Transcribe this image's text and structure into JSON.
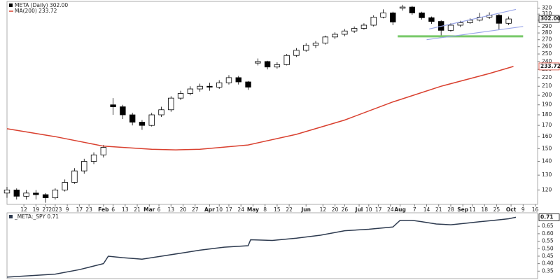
{
  "chart_data": [
    {
      "type": "candlestick",
      "log_scale": true,
      "name": "META (Daily) 302.00",
      "color": "#000000",
      "up_fill": "#ffffff",
      "x": [
        0,
        4,
        8,
        12,
        16,
        20,
        24,
        28,
        32,
        36,
        40,
        44,
        48,
        52,
        56,
        60,
        64,
        68,
        72,
        76,
        80,
        84,
        88,
        92,
        96,
        100,
        104,
        108,
        112,
        116,
        120,
        124,
        128,
        132,
        136,
        140,
        144,
        148,
        152,
        156,
        160,
        164,
        168,
        172,
        176,
        180,
        184,
        188,
        192,
        196,
        200,
        204,
        208
      ],
      "open": [
        118,
        120,
        116,
        118,
        117,
        115,
        120,
        125,
        133,
        140,
        145,
        190,
        188,
        180,
        173,
        170,
        180,
        185,
        197,
        202,
        207,
        210,
        209,
        214,
        220,
        215,
        238,
        240,
        233,
        236,
        248,
        255,
        262,
        265,
        274,
        278,
        283,
        287,
        292,
        305,
        312,
        320,
        322,
        312,
        304,
        298,
        284,
        292,
        296,
        300,
        305,
        308,
        295
      ],
      "high": [
        122,
        121,
        120,
        120,
        118,
        121,
        127,
        135,
        142,
        147,
        153,
        197,
        190,
        182,
        175,
        182,
        188,
        199,
        205,
        210,
        213,
        214,
        217,
        223,
        222,
        216,
        244,
        241,
        239,
        250,
        258,
        265,
        268,
        276,
        281,
        286,
        290,
        295,
        308,
        318,
        314,
        326,
        324,
        314,
        306,
        300,
        295,
        299,
        303,
        312,
        313,
        310,
        306
      ],
      "low": [
        115,
        114,
        114,
        114,
        112,
        114,
        119,
        124,
        131,
        138,
        143,
        180,
        176,
        170,
        166,
        169,
        178,
        183,
        195,
        200,
        204,
        205,
        207,
        212,
        212,
        206,
        235,
        230,
        231,
        235,
        246,
        253,
        258,
        263,
        271,
        275,
        280,
        285,
        290,
        303,
        292,
        316,
        309,
        301,
        294,
        275,
        282,
        289,
        294,
        298,
        302,
        285,
        292
      ],
      "close": [
        120,
        116,
        118,
        117,
        115,
        120,
        125,
        133,
        140,
        145,
        151,
        188,
        180,
        173,
        170,
        180,
        185,
        197,
        202,
        207,
        210,
        209,
        214,
        220,
        215,
        209,
        240,
        233,
        236,
        248,
        255,
        262,
        265,
        274,
        278,
        283,
        287,
        292,
        305,
        312,
        297,
        322,
        312,
        304,
        298,
        284,
        292,
        296,
        300,
        305,
        308,
        295,
        302
      ],
      "last_value": {
        "value": 302,
        "label": "302.00"
      },
      "overlays": [
        {
          "type": "line",
          "name": "MA(200) 233.72",
          "color": "#d9402f",
          "x": [
            0,
            20,
            40,
            60,
            70,
            80,
            100,
            120,
            140,
            160,
            180,
            200,
            210
          ],
          "values": [
            167,
            160,
            152,
            149.5,
            149,
            149.5,
            153,
            162,
            175,
            193,
            210,
            225,
            233.72
          ],
          "last_value": {
            "value": 233.72,
            "label": "233.72"
          }
        }
      ],
      "annotations": [
        {
          "type": "hline",
          "y": 275,
          "x": [
            162,
            214
          ],
          "color": "#79c96a"
        },
        {
          "type": "trendline",
          "x": [
            175,
            211
          ],
          "y": [
            286,
            318
          ],
          "color": "#9aa6e8"
        },
        {
          "type": "trendline",
          "x": [
            174,
            214
          ],
          "y": [
            270,
            290
          ],
          "color": "#9aa6e8"
        }
      ],
      "xlim": [
        0,
        220
      ],
      "ylim": [
        111,
        332
      ],
      "yticks": [
        120,
        130,
        140,
        150,
        160,
        170,
        180,
        190,
        200,
        210,
        220,
        230,
        240,
        250,
        260,
        270,
        280,
        290,
        300,
        310,
        320
      ],
      "xticks": [
        {
          "value": 7,
          "label": "12"
        },
        {
          "value": 12,
          "label": "19"
        },
        {
          "value": 16,
          "label": "27"
        },
        {
          "value": 20,
          "label": "2023"
        },
        {
          "value": 25,
          "label": "9"
        },
        {
          "value": 30,
          "label": "17"
        },
        {
          "value": 34,
          "label": "23"
        },
        {
          "value": 40,
          "label": "Feb"
        },
        {
          "value": 44,
          "label": "6"
        },
        {
          "value": 49,
          "label": "13"
        },
        {
          "value": 54,
          "label": "21"
        },
        {
          "value": 59,
          "label": "Mar"
        },
        {
          "value": 63,
          "label": "6"
        },
        {
          "value": 68,
          "label": "13"
        },
        {
          "value": 73,
          "label": "20"
        },
        {
          "value": 78,
          "label": "27"
        },
        {
          "value": 84,
          "label": "Apr"
        },
        {
          "value": 88,
          "label": "10"
        },
        {
          "value": 92,
          "label": "17"
        },
        {
          "value": 97,
          "label": "24"
        },
        {
          "value": 102,
          "label": "May"
        },
        {
          "value": 107,
          "label": "8"
        },
        {
          "value": 112,
          "label": "15"
        },
        {
          "value": 117,
          "label": "22"
        },
        {
          "value": 124,
          "label": "Jun"
        },
        {
          "value": 131,
          "label": "12"
        },
        {
          "value": 136,
          "label": "20"
        },
        {
          "value": 140,
          "label": "26"
        },
        {
          "value": 146,
          "label": "Jul"
        },
        {
          "value": 150,
          "label": "10"
        },
        {
          "value": 154,
          "label": "17"
        },
        {
          "value": 159,
          "label": "24"
        },
        {
          "value": 163,
          "label": "Aug"
        },
        {
          "value": 169,
          "label": "7"
        },
        {
          "value": 174,
          "label": "14"
        },
        {
          "value": 179,
          "label": "21"
        },
        {
          "value": 184,
          "label": "28"
        },
        {
          "value": 189,
          "label": "Sep"
        },
        {
          "value": 193,
          "label": "11"
        },
        {
          "value": 198,
          "label": "18"
        },
        {
          "value": 203,
          "label": "25"
        },
        {
          "value": 209,
          "label": "Oct"
        },
        {
          "value": 214,
          "label": "9"
        },
        {
          "value": 219,
          "label": "16"
        }
      ],
      "grid": false
    },
    {
      "type": "line",
      "name": "_META:_SPY 0.71",
      "color": "#2d3a4f",
      "x": [
        0,
        10,
        20,
        30,
        40,
        42,
        48,
        56,
        64,
        72,
        80,
        90,
        100,
        101,
        110,
        120,
        130,
        140,
        150,
        160,
        163,
        168,
        172,
        178,
        184,
        190,
        196,
        202,
        208,
        211
      ],
      "values": [
        0.31,
        0.32,
        0.33,
        0.36,
        0.4,
        0.45,
        0.44,
        0.43,
        0.45,
        0.47,
        0.49,
        0.51,
        0.52,
        0.56,
        0.555,
        0.57,
        0.59,
        0.62,
        0.63,
        0.645,
        0.69,
        0.69,
        0.68,
        0.665,
        0.66,
        0.67,
        0.68,
        0.69,
        0.7,
        0.71
      ],
      "last_value": {
        "value": 0.71,
        "label": "0.71"
      },
      "xlim": [
        0,
        220
      ],
      "ylim": [
        0.3,
        0.74
      ],
      "yticks": [
        {
          "value": 0.35,
          "label": "0.35"
        },
        {
          "value": 0.4,
          "label": "0.40"
        },
        {
          "value": 0.45,
          "label": "0.45"
        },
        {
          "value": 0.5,
          "label": "0.50"
        },
        {
          "value": 0.55,
          "label": "0.55"
        },
        {
          "value": 0.6,
          "label": "0.60"
        },
        {
          "value": 0.65,
          "label": "0.65"
        }
      ],
      "grid": false
    }
  ]
}
